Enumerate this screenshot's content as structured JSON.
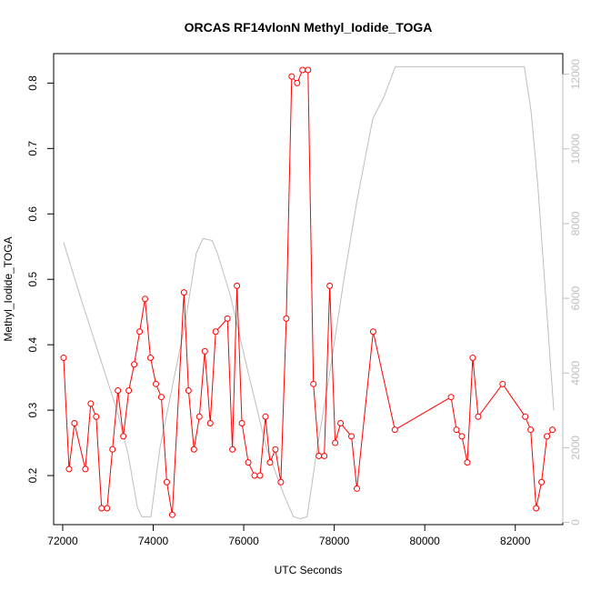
{
  "chart_data": {
    "type": "line",
    "title": "ORCAS RF14vlonN Methyl_Iodide_TOGA",
    "xlabel": "UTC Seconds",
    "ylabel": "Methyl_Iodide_TOGA",
    "xlim": [
      71800,
      83050
    ],
    "ylim": [
      0.125,
      0.845
    ],
    "y2lim": [
      -60,
      12550
    ],
    "x_ticks": [
      72000,
      74000,
      76000,
      78000,
      80000,
      82000
    ],
    "y_ticks": [
      0.2,
      0.3,
      0.4,
      0.5,
      0.6,
      0.7,
      0.8
    ],
    "y2_ticks": [
      0,
      2000,
      4000,
      6000,
      8000,
      10000,
      12000
    ],
    "grid": false,
    "colors": {
      "primary": "#ff0000",
      "secondary": "#bebebe",
      "axis": "#000000"
    },
    "series": [
      {
        "axis": "left",
        "style": "line+points",
        "x": [
          72020,
          72140,
          72260,
          72500,
          72620,
          72740,
          72860,
          72980,
          73100,
          73220,
          73340,
          73460,
          73580,
          73700,
          73820,
          73940,
          74060,
          74180,
          74300,
          74420,
          74680,
          74780,
          74900,
          75020,
          75140,
          75260,
          75380,
          75640,
          75750,
          75850,
          75960,
          76100,
          76240,
          76360,
          76480,
          76580,
          76700,
          76820,
          76940,
          77060,
          77180,
          77300,
          77420,
          77540,
          77660,
          77780,
          77900,
          78020,
          78140,
          78380,
          78500,
          78860,
          79340,
          80580,
          80700,
          80820,
          80940,
          81060,
          81180,
          81720,
          82220,
          82340,
          82460,
          82580,
          82700,
          82820
        ],
        "y": [
          0.38,
          0.21,
          0.28,
          0.21,
          0.31,
          0.29,
          0.15,
          0.15,
          0.24,
          0.33,
          0.26,
          0.33,
          0.37,
          0.42,
          0.47,
          0.38,
          0.34,
          0.32,
          0.19,
          0.14,
          0.48,
          0.33,
          0.24,
          0.29,
          0.39,
          0.28,
          0.42,
          0.44,
          0.24,
          0.49,
          0.28,
          0.22,
          0.2,
          0.2,
          0.29,
          0.22,
          0.24,
          0.19,
          0.44,
          0.81,
          0.8,
          0.82,
          0.82,
          0.34,
          0.23,
          0.23,
          0.49,
          0.25,
          0.28,
          0.26,
          0.18,
          0.42,
          0.27,
          0.32,
          0.27,
          0.26,
          0.22,
          0.38,
          0.29,
          0.34,
          0.29,
          0.27,
          0.15,
          0.19,
          0.26,
          0.27
        ]
      },
      {
        "axis": "right",
        "style": "line",
        "x": [
          72020,
          72400,
          72800,
          73200,
          73450,
          73650,
          73750,
          73950,
          74150,
          74400,
          74700,
          74950,
          75100,
          75300,
          75420,
          75700,
          76100,
          76500,
          76900,
          77100,
          77250,
          77400,
          77600,
          77900,
          78200,
          78500,
          78850,
          79100,
          79350,
          80000,
          80500,
          81000,
          82200,
          82350,
          82500,
          82850
        ],
        "y": [
          7500,
          6000,
          4500,
          3000,
          1800,
          400,
          150,
          150,
          2000,
          3500,
          5300,
          7200,
          7600,
          7550,
          7200,
          6100,
          4000,
          2000,
          700,
          150,
          100,
          150,
          1800,
          4000,
          6400,
          8600,
          10800,
          11400,
          12200,
          12200,
          12200,
          12200,
          12200,
          11000,
          9000,
          3000
        ]
      }
    ]
  }
}
